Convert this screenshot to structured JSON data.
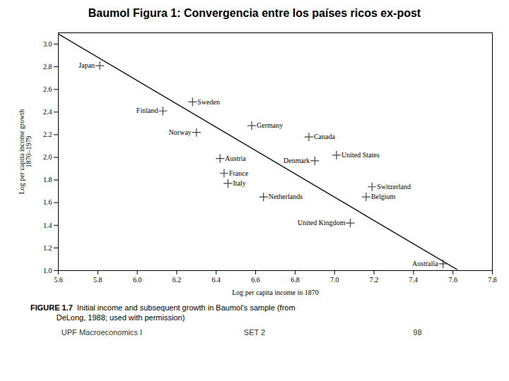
{
  "chart_data": {
    "type": "scatter",
    "title": "Baumol Figura 1: Convergencia entre los países ricos ex-post",
    "xlabel": "Log per capita income in 1870",
    "ylabel": "Log per capita income growth\n1870–1979",
    "xlim": [
      5.6,
      7.8
    ],
    "ylim": [
      1.0,
      3.1
    ],
    "xticks": [
      5.6,
      5.8,
      {
        "value": 6.0,
        "label": "6.0"
      },
      6.2,
      6.4,
      6.6,
      6.8,
      {
        "value": 7.0,
        "label": "7.0"
      },
      7.2,
      7.4,
      7.6,
      7.8
    ],
    "yticks": [
      {
        "value": 1.0,
        "label": "1.0"
      },
      1.2,
      1.4,
      1.6,
      1.8,
      {
        "value": 2.0,
        "label": "2.0"
      },
      2.2,
      2.4,
      2.6,
      2.8,
      {
        "value": 3.0,
        "label": "3.0"
      }
    ],
    "grid": false,
    "series": [
      {
        "type": "line",
        "color": "#1a1a1a",
        "x": [
          5.6,
          7.62
        ],
        "values": [
          3.09,
          1.01
        ]
      },
      {
        "type": "scatter",
        "marker": "plus",
        "color": "#444444",
        "x": [
          5.81,
          6.28,
          6.13,
          6.58,
          6.3,
          6.87,
          6.42,
          7.01,
          6.9,
          6.44,
          6.46,
          7.19,
          6.64,
          7.16,
          7.08,
          7.55
        ],
        "values": [
          2.81,
          2.49,
          2.41,
          2.28,
          2.22,
          2.18,
          1.99,
          2.02,
          1.97,
          1.86,
          1.77,
          1.74,
          1.65,
          1.65,
          1.42,
          1.06
        ],
        "labels": [
          "Japan",
          "Sweden",
          "Finland",
          "Germany",
          "Norway",
          "Canada",
          "Austria",
          "United States",
          "Denmark",
          "France",
          "Italy",
          "Switzerland",
          "Netherlands",
          "Belgium",
          "United Kingdom",
          "Australia"
        ]
      }
    ],
    "caption_title": "FIGURE 1.7",
    "caption": "  Initial income and subsequent growth in Baumol’s sample (from\n            DeLong, 1988; used with permission)",
    "footer": [
      "UPF Macroeconomics I",
      "SET 2",
      "98"
    ]
  }
}
